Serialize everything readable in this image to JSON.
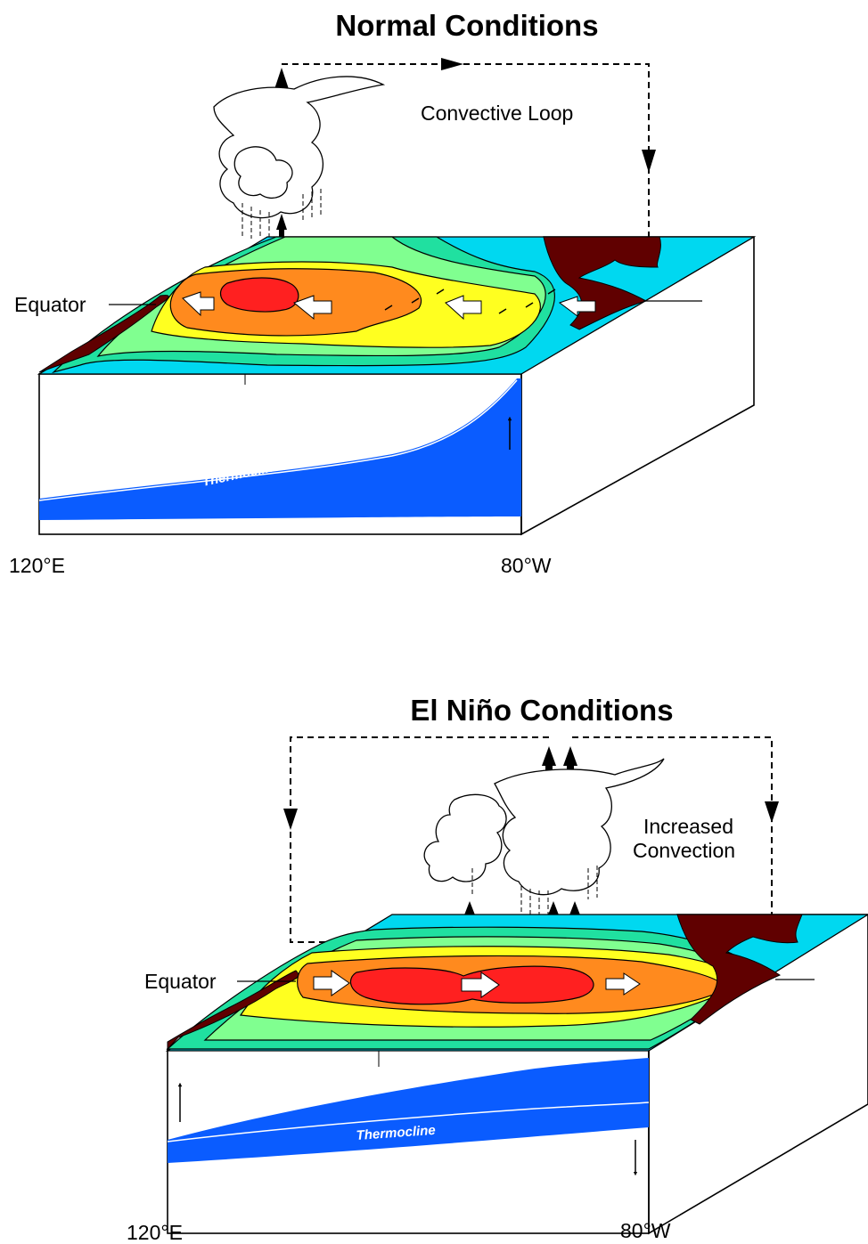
{
  "normal": {
    "title": "Normal Conditions",
    "loop_label": "Convective Loop",
    "equator_label": "Equator",
    "thermocline_label": "Thermocline",
    "lon_west": "120°E",
    "lon_east": "80°W"
  },
  "elnino": {
    "title": "El Niño Conditions",
    "convection_label_1": "Increased",
    "convection_label_2": "Convection",
    "equator_label": "Equator",
    "thermocline_label": "Thermocline",
    "lon_west": "120°E",
    "lon_east": "80°W"
  },
  "colors": {
    "warm_core": "#ff2020",
    "warm": "#ff8a1e",
    "mid": "#ffff20",
    "cool": "#80ff90",
    "cooler": "#20e0a0",
    "cold": "#00d8f0",
    "land": "#600000",
    "ocean_deep": "#0a5cff"
  }
}
